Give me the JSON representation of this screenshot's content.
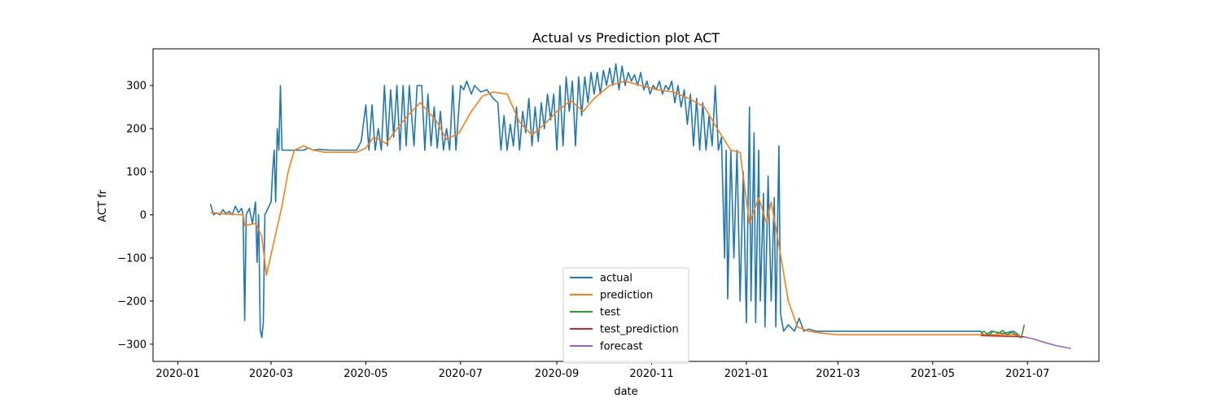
{
  "chart_data": {
    "type": "line",
    "title": "Actual vs Prediction plot ACT",
    "xlabel": "date",
    "ylabel": "ACT fr",
    "x_axis": {
      "type": "date",
      "range": [
        "2019-12-16",
        "2021-08-16"
      ],
      "ticks": [
        "2020-01-01",
        "2020-03-01",
        "2020-05-01",
        "2020-07-01",
        "2020-09-01",
        "2020-11-01",
        "2021-01-01",
        "2021-03-01",
        "2021-05-01",
        "2021-07-01"
      ],
      "tick_labels": [
        "2020-01",
        "2020-03",
        "2020-05",
        "2020-07",
        "2020-09",
        "2020-11",
        "2021-01",
        "2021-03",
        "2021-05",
        "2021-07"
      ]
    },
    "y_axis": {
      "range": [
        -340,
        385
      ],
      "ticks": [
        -300,
        -200,
        -100,
        0,
        100,
        200,
        300
      ],
      "tick_labels": [
        "−300",
        "−200",
        "−100",
        "0",
        "100",
        "200",
        "300"
      ]
    },
    "grid": false,
    "legend_position": "lower center",
    "series": [
      {
        "name": "actual",
        "color": "#1f77b4",
        "points": [
          [
            "2020-01-22",
            25
          ],
          [
            "2020-01-24",
            0
          ],
          [
            "2020-01-26",
            5
          ],
          [
            "2020-01-28",
            0
          ],
          [
            "2020-01-30",
            12
          ],
          [
            "2020-02-01",
            2
          ],
          [
            "2020-02-03",
            8
          ],
          [
            "2020-02-05",
            0
          ],
          [
            "2020-02-07",
            20
          ],
          [
            "2020-02-09",
            5
          ],
          [
            "2020-02-11",
            15
          ],
          [
            "2020-02-12",
            0
          ],
          [
            "2020-02-13",
            -245
          ],
          [
            "2020-02-14",
            0
          ],
          [
            "2020-02-16",
            15
          ],
          [
            "2020-02-18",
            -20
          ],
          [
            "2020-02-20",
            30
          ],
          [
            "2020-02-21",
            -110
          ],
          [
            "2020-02-22",
            0
          ],
          [
            "2020-02-23",
            -265
          ],
          [
            "2020-02-24",
            -285
          ],
          [
            "2020-02-25",
            -250
          ],
          [
            "2020-02-26",
            0
          ],
          [
            "2020-02-28",
            15
          ],
          [
            "2020-03-01",
            30
          ],
          [
            "2020-03-02",
            100
          ],
          [
            "2020-03-03",
            150
          ],
          [
            "2020-03-04",
            30
          ],
          [
            "2020-03-05",
            200
          ],
          [
            "2020-03-06",
            150
          ],
          [
            "2020-03-07",
            300
          ],
          [
            "2020-03-08",
            150
          ],
          [
            "2020-03-15",
            150
          ],
          [
            "2020-03-22",
            150
          ],
          [
            "2020-03-25",
            155
          ],
          [
            "2020-03-28",
            150
          ],
          [
            "2020-04-01",
            152
          ],
          [
            "2020-04-08",
            150
          ],
          [
            "2020-04-15",
            150
          ],
          [
            "2020-04-22",
            150
          ],
          [
            "2020-04-25",
            150
          ],
          [
            "2020-04-28",
            170
          ],
          [
            "2020-05-01",
            255
          ],
          [
            "2020-05-03",
            150
          ],
          [
            "2020-05-05",
            255
          ],
          [
            "2020-05-07",
            150
          ],
          [
            "2020-05-09",
            200
          ],
          [
            "2020-05-11",
            150
          ],
          [
            "2020-05-13",
            300
          ],
          [
            "2020-05-15",
            160
          ],
          [
            "2020-05-17",
            290
          ],
          [
            "2020-05-19",
            180
          ],
          [
            "2020-05-21",
            300
          ],
          [
            "2020-05-23",
            150
          ],
          [
            "2020-05-25",
            300
          ],
          [
            "2020-05-27",
            160
          ],
          [
            "2020-05-29",
            300
          ],
          [
            "2020-06-01",
            160
          ],
          [
            "2020-06-03",
            300
          ],
          [
            "2020-06-06",
            300
          ],
          [
            "2020-06-08",
            150
          ],
          [
            "2020-06-10",
            280
          ],
          [
            "2020-06-12",
            160
          ],
          [
            "2020-06-14",
            250
          ],
          [
            "2020-06-16",
            155
          ],
          [
            "2020-06-18",
            240
          ],
          [
            "2020-06-20",
            150
          ],
          [
            "2020-06-22",
            200
          ],
          [
            "2020-06-24",
            150
          ],
          [
            "2020-06-26",
            300
          ],
          [
            "2020-06-28",
            150
          ],
          [
            "2020-07-01",
            300
          ],
          [
            "2020-07-03",
            290
          ],
          [
            "2020-07-05",
            310
          ],
          [
            "2020-07-08",
            280
          ],
          [
            "2020-07-10",
            300
          ],
          [
            "2020-07-14",
            285
          ],
          [
            "2020-07-18",
            290
          ],
          [
            "2020-07-22",
            270
          ],
          [
            "2020-07-25",
            260
          ],
          [
            "2020-07-27",
            150
          ],
          [
            "2020-07-29",
            230
          ],
          [
            "2020-07-31",
            150
          ],
          [
            "2020-08-02",
            210
          ],
          [
            "2020-08-04",
            160
          ],
          [
            "2020-08-06",
            250
          ],
          [
            "2020-08-08",
            150
          ],
          [
            "2020-08-10",
            240
          ],
          [
            "2020-08-12",
            190
          ],
          [
            "2020-08-14",
            270
          ],
          [
            "2020-08-16",
            160
          ],
          [
            "2020-08-18",
            250
          ],
          [
            "2020-08-20",
            170
          ],
          [
            "2020-08-22",
            260
          ],
          [
            "2020-08-24",
            200
          ],
          [
            "2020-08-26",
            280
          ],
          [
            "2020-08-28",
            220
          ],
          [
            "2020-08-30",
            280
          ],
          [
            "2020-09-01",
            150
          ],
          [
            "2020-09-03",
            300
          ],
          [
            "2020-09-05",
            160
          ],
          [
            "2020-09-07",
            320
          ],
          [
            "2020-09-09",
            240
          ],
          [
            "2020-09-11",
            310
          ],
          [
            "2020-09-13",
            160
          ],
          [
            "2020-09-15",
            320
          ],
          [
            "2020-09-17",
            230
          ],
          [
            "2020-09-19",
            320
          ],
          [
            "2020-09-21",
            260
          ],
          [
            "2020-09-23",
            330
          ],
          [
            "2020-09-25",
            280
          ],
          [
            "2020-09-27",
            330
          ],
          [
            "2020-09-29",
            280
          ],
          [
            "2020-10-01",
            335
          ],
          [
            "2020-10-03",
            300
          ],
          [
            "2020-10-05",
            340
          ],
          [
            "2020-10-07",
            300
          ],
          [
            "2020-10-09",
            350
          ],
          [
            "2020-10-11",
            290
          ],
          [
            "2020-10-13",
            345
          ],
          [
            "2020-10-15",
            300
          ],
          [
            "2020-10-17",
            330
          ],
          [
            "2020-10-19",
            310
          ],
          [
            "2020-10-21",
            325
          ],
          [
            "2020-10-23",
            300
          ],
          [
            "2020-10-25",
            330
          ],
          [
            "2020-10-27",
            290
          ],
          [
            "2020-10-29",
            310
          ],
          [
            "2020-10-31",
            280
          ],
          [
            "2020-11-02",
            300
          ],
          [
            "2020-11-04",
            290
          ],
          [
            "2020-11-06",
            310
          ],
          [
            "2020-11-08",
            280
          ],
          [
            "2020-11-10",
            300
          ],
          [
            "2020-11-12",
            290
          ],
          [
            "2020-11-14",
            310
          ],
          [
            "2020-11-16",
            260
          ],
          [
            "2020-11-18",
            300
          ],
          [
            "2020-11-20",
            250
          ],
          [
            "2020-11-22",
            290
          ],
          [
            "2020-11-24",
            210
          ],
          [
            "2020-11-26",
            280
          ],
          [
            "2020-11-28",
            160
          ],
          [
            "2020-11-30",
            270
          ],
          [
            "2020-12-02",
            150
          ],
          [
            "2020-12-04",
            260
          ],
          [
            "2020-12-06",
            150
          ],
          [
            "2020-12-08",
            230
          ],
          [
            "2020-12-10",
            160
          ],
          [
            "2020-12-12",
            300
          ],
          [
            "2020-12-14",
            150
          ],
          [
            "2020-12-16",
            180
          ],
          [
            "2020-12-18",
            -100
          ],
          [
            "2020-12-19",
            150
          ],
          [
            "2020-12-20",
            -195
          ],
          [
            "2020-12-22",
            150
          ],
          [
            "2020-12-24",
            -100
          ],
          [
            "2020-12-26",
            150
          ],
          [
            "2020-12-28",
            -200
          ],
          [
            "2020-12-30",
            100
          ],
          [
            "2021-01-01",
            -250
          ],
          [
            "2021-01-03",
            250
          ],
          [
            "2021-01-04",
            -200
          ],
          [
            "2021-01-06",
            190
          ],
          [
            "2021-01-07",
            -250
          ],
          [
            "2021-01-09",
            150
          ],
          [
            "2021-01-10",
            -200
          ],
          [
            "2021-01-12",
            50
          ],
          [
            "2021-01-13",
            -260
          ],
          [
            "2021-01-15",
            90
          ],
          [
            "2021-01-17",
            -200
          ],
          [
            "2021-01-19",
            40
          ],
          [
            "2021-01-20",
            -260
          ],
          [
            "2021-01-22",
            160
          ],
          [
            "2021-01-23",
            -230
          ],
          [
            "2021-01-25",
            -270
          ],
          [
            "2021-01-28",
            -255
          ],
          [
            "2021-02-01",
            -270
          ],
          [
            "2021-02-04",
            -240
          ],
          [
            "2021-02-07",
            -270
          ],
          [
            "2021-02-10",
            -265
          ],
          [
            "2021-02-15",
            -270
          ],
          [
            "2021-03-01",
            -270
          ],
          [
            "2021-04-01",
            -270
          ],
          [
            "2021-05-01",
            -270
          ],
          [
            "2021-06-01",
            -270
          ],
          [
            "2021-06-03",
            -280
          ],
          [
            "2021-06-08",
            -270
          ],
          [
            "2021-06-15",
            -275
          ],
          [
            "2021-06-22",
            -270
          ],
          [
            "2021-06-26",
            -280
          ]
        ]
      },
      {
        "name": "prediction",
        "color": "#ff7f0e",
        "points": [
          [
            "2020-01-22",
            5
          ],
          [
            "2020-02-01",
            2
          ],
          [
            "2020-02-12",
            0
          ],
          [
            "2020-02-13",
            -25
          ],
          [
            "2020-02-20",
            -20
          ],
          [
            "2020-02-24",
            -50
          ],
          [
            "2020-02-27",
            -140
          ],
          [
            "2020-03-03",
            -60
          ],
          [
            "2020-03-08",
            20
          ],
          [
            "2020-03-12",
            100
          ],
          [
            "2020-03-16",
            150
          ],
          [
            "2020-03-22",
            160
          ],
          [
            "2020-03-28",
            150
          ],
          [
            "2020-04-05",
            145
          ],
          [
            "2020-04-25",
            145
          ],
          [
            "2020-05-01",
            155
          ],
          [
            "2020-05-06",
            180
          ],
          [
            "2020-05-10",
            175
          ],
          [
            "2020-05-14",
            165
          ],
          [
            "2020-05-20",
            195
          ],
          [
            "2020-05-28",
            230
          ],
          [
            "2020-06-05",
            260
          ],
          [
            "2020-06-15",
            220
          ],
          [
            "2020-06-22",
            175
          ],
          [
            "2020-06-30",
            190
          ],
          [
            "2020-07-08",
            240
          ],
          [
            "2020-07-15",
            275
          ],
          [
            "2020-07-22",
            285
          ],
          [
            "2020-07-31",
            280
          ],
          [
            "2020-08-08",
            215
          ],
          [
            "2020-08-16",
            185
          ],
          [
            "2020-08-24",
            210
          ],
          [
            "2020-09-01",
            240
          ],
          [
            "2020-09-10",
            265
          ],
          [
            "2020-09-18",
            240
          ],
          [
            "2020-09-25",
            270
          ],
          [
            "2020-10-05",
            300
          ],
          [
            "2020-10-15",
            310
          ],
          [
            "2020-10-25",
            300
          ],
          [
            "2020-11-05",
            290
          ],
          [
            "2020-11-15",
            285
          ],
          [
            "2020-11-25",
            270
          ],
          [
            "2020-12-05",
            250
          ],
          [
            "2020-12-15",
            190
          ],
          [
            "2020-12-22",
            150
          ],
          [
            "2020-12-28",
            145
          ],
          [
            "2021-01-03",
            -20
          ],
          [
            "2021-01-09",
            40
          ],
          [
            "2021-01-14",
            -20
          ],
          [
            "2021-01-17",
            30
          ],
          [
            "2021-01-22",
            -70
          ],
          [
            "2021-01-28",
            -200
          ],
          [
            "2021-02-03",
            -260
          ],
          [
            "2021-02-10",
            -270
          ],
          [
            "2021-02-20",
            -275
          ],
          [
            "2021-03-01",
            -278
          ],
          [
            "2021-06-26",
            -278
          ]
        ]
      },
      {
        "name": "test",
        "color": "#2ca02c",
        "points": [
          [
            "2021-06-01",
            -275
          ],
          [
            "2021-06-03",
            -270
          ],
          [
            "2021-06-06",
            -280
          ],
          [
            "2021-06-09",
            -270
          ],
          [
            "2021-06-12",
            -275
          ],
          [
            "2021-06-15",
            -268
          ],
          [
            "2021-06-18",
            -278
          ],
          [
            "2021-06-21",
            -272
          ],
          [
            "2021-06-24",
            -280
          ],
          [
            "2021-06-27",
            -285
          ],
          [
            "2021-06-29",
            -255
          ]
        ]
      },
      {
        "name": "test_prediction",
        "color": "#d62728",
        "points": [
          [
            "2021-06-01",
            -280
          ],
          [
            "2021-06-29",
            -283
          ]
        ]
      },
      {
        "name": "forecast",
        "color": "#9467bd",
        "points": [
          [
            "2021-06-29",
            -283
          ],
          [
            "2021-07-05",
            -288
          ],
          [
            "2021-07-12",
            -296
          ],
          [
            "2021-07-19",
            -303
          ],
          [
            "2021-07-29",
            -310
          ]
        ]
      }
    ]
  }
}
